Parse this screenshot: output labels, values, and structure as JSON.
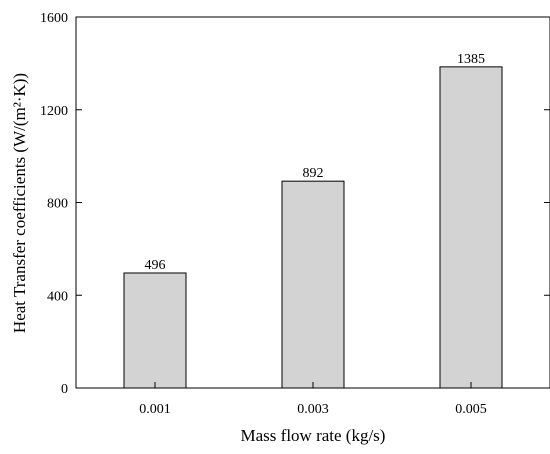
{
  "chart_data": {
    "type": "bar",
    "categories": [
      "0.001",
      "0.003",
      "0.005"
    ],
    "values": [
      496,
      892,
      1385
    ],
    "data_labels": [
      "496",
      "892",
      "1385"
    ],
    "xlabel": "Mass flow rate (kg/s)",
    "ylabel": "Heat Transfer coefficients (W/(m²·K))",
    "ylim": [
      0,
      1600
    ],
    "yticks": [
      0,
      400,
      800,
      1200,
      1600
    ],
    "ytick_labels": [
      "0",
      "400",
      "800",
      "1200",
      "1600"
    ],
    "grid": false,
    "legend": "none",
    "bar_color": "#d3d3d3",
    "edge_color": "#000000"
  }
}
